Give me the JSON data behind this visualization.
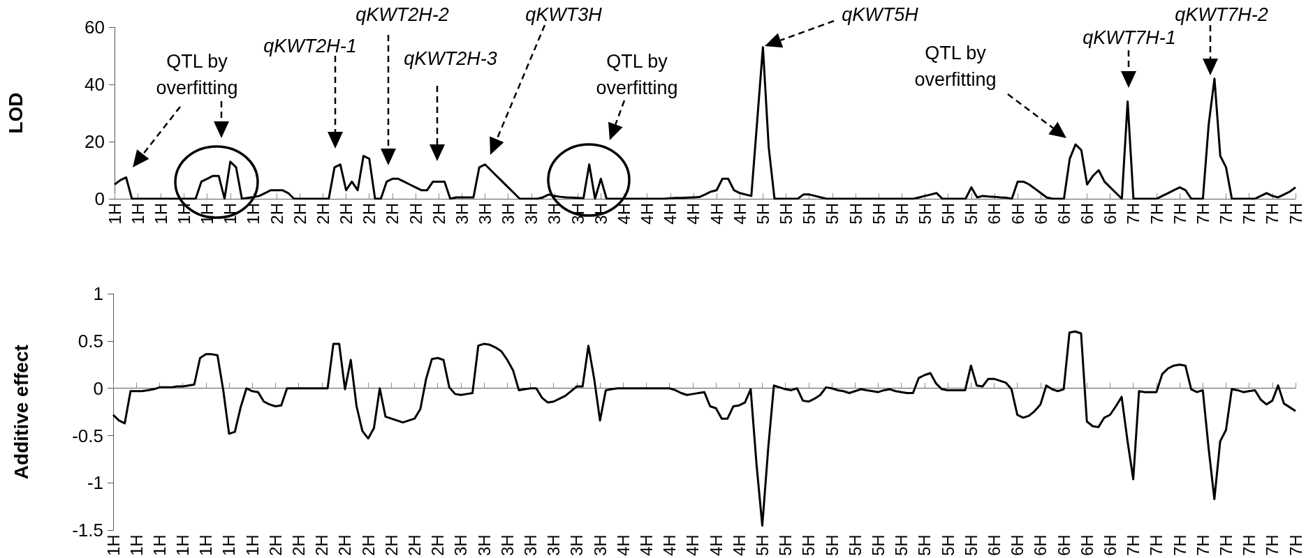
{
  "chart_data": [
    {
      "type": "line",
      "ylabel": "LOD",
      "marker": "none",
      "categories": [
        "1H",
        null,
        null,
        null,
        "1H",
        null,
        null,
        null,
        "1H",
        null,
        null,
        null,
        "1H",
        null,
        null,
        null,
        "1H",
        null,
        null,
        null,
        "1H",
        null,
        null,
        null,
        "1H",
        null,
        null,
        null,
        "2H",
        null,
        null,
        null,
        "2H",
        null,
        null,
        null,
        "2H",
        null,
        null,
        null,
        "2H",
        null,
        null,
        null,
        "2H",
        null,
        null,
        null,
        "2H",
        null,
        null,
        null,
        "2H",
        null,
        null,
        null,
        "2H",
        null,
        null,
        null,
        "3H",
        null,
        null,
        null,
        "3H",
        null,
        null,
        null,
        "3H",
        null,
        null,
        null,
        "3H",
        null,
        null,
        null,
        "3H",
        null,
        null,
        null,
        "3H",
        null,
        null,
        null,
        "3H",
        null,
        null,
        null,
        "4H",
        null,
        null,
        null,
        "4H",
        null,
        null,
        null,
        "4H",
        null,
        null,
        null,
        "4H",
        null,
        null,
        null,
        "4H",
        null,
        null,
        null,
        "4H",
        null,
        null,
        null,
        "5H",
        null,
        null,
        null,
        "5H",
        null,
        null,
        null,
        "5H",
        null,
        null,
        null,
        "5H",
        null,
        null,
        null,
        "5H",
        null,
        null,
        null,
        "5H",
        null,
        null,
        null,
        "5H",
        null,
        null,
        null,
        "5H",
        null,
        null,
        null,
        "5H",
        null,
        null,
        null,
        "5H",
        null,
        null,
        null,
        "6H",
        null,
        null,
        null,
        "6H",
        null,
        null,
        null,
        "6H",
        null,
        null,
        null,
        "6H",
        null,
        null,
        null,
        "6H",
        null,
        null,
        null,
        "6H",
        null,
        null,
        null,
        "7H",
        null,
        null,
        null,
        "7H",
        null,
        null,
        null,
        "7H",
        null,
        null,
        null,
        "7H",
        null,
        null,
        null,
        "7H",
        null,
        null,
        null,
        "7H",
        null,
        null,
        null,
        "7H",
        null,
        null,
        null,
        "7H"
      ],
      "ylim": [
        0,
        60
      ],
      "yticks": [
        0,
        20,
        40,
        60
      ],
      "series": [
        {
          "color": "#000000",
          "values": [
            5,
            6.5,
            7.5,
            0,
            0,
            0,
            0,
            0,
            0,
            0,
            0,
            0,
            0,
            0,
            0,
            6,
            7,
            8,
            8,
            0,
            13,
            11,
            0,
            0.3,
            0.6,
            1,
            2,
            3,
            3,
            3,
            2,
            0,
            0,
            0,
            0,
            0,
            0,
            0,
            11,
            12,
            3,
            6,
            3,
            15,
            14,
            0,
            0,
            6,
            7,
            7,
            6,
            5,
            4,
            3,
            3,
            6,
            6,
            6,
            0,
            0.5,
            0.5,
            0.5,
            0.5,
            11,
            12,
            10,
            8,
            6,
            4,
            2,
            0,
            0,
            0,
            0,
            0.5,
            1.5,
            1,
            0.7,
            0.5,
            0.4,
            0.3,
            0.2,
            12,
            0,
            7,
            0,
            0,
            0,
            0,
            0,
            0,
            0,
            0,
            0,
            0,
            0,
            0.2,
            0.3,
            0.3,
            0.4,
            0.5,
            0.6,
            1.5,
            2.5,
            3,
            7,
            7,
            3,
            2,
            1.5,
            1,
            27,
            53,
            18,
            0,
            0,
            0,
            0,
            0,
            1.5,
            1.5,
            1,
            0.5,
            0,
            0,
            0,
            0,
            0,
            0,
            0,
            0,
            0,
            0,
            0,
            0,
            0,
            0,
            0,
            0,
            0.5,
            1,
            1.5,
            2,
            0,
            0,
            0,
            0,
            0,
            4,
            0.5,
            1,
            0.8,
            0.7,
            0.5,
            0.4,
            0,
            6,
            6,
            5,
            3.5,
            2,
            0.5,
            0,
            0,
            0,
            14,
            19,
            17,
            5,
            8,
            10,
            6,
            4,
            2,
            0,
            34,
            0,
            0,
            0,
            0,
            0,
            1,
            2,
            3,
            4,
            3,
            0,
            0,
            0,
            26,
            42,
            15,
            11,
            0,
            0,
            0,
            0,
            0,
            1,
            2,
            1,
            0.5,
            1.5,
            2.5,
            4
          ]
        }
      ],
      "annotations": [
        "QTL by overfitting",
        "qKWT2H-1",
        "qKWT2H-2",
        "qKWT2H-3",
        "qKWT3H",
        "QTL by overfitting",
        "qKWT5H",
        "QTL by overfitting",
        "qKWT7H-1",
        "qKWT7H-2"
      ]
    },
    {
      "type": "line",
      "ylabel": "Additive effect",
      "marker": "none",
      "categories": [
        "1H",
        null,
        null,
        null,
        "1H",
        null,
        null,
        null,
        "1H",
        null,
        null,
        null,
        "1H",
        null,
        null,
        null,
        "1H",
        null,
        null,
        null,
        "1H",
        null,
        null,
        null,
        "1H",
        null,
        null,
        null,
        "2H",
        null,
        null,
        null,
        "2H",
        null,
        null,
        null,
        "2H",
        null,
        null,
        null,
        "2H",
        null,
        null,
        null,
        "2H",
        null,
        null,
        null,
        "2H",
        null,
        null,
        null,
        "2H",
        null,
        null,
        null,
        "2H",
        null,
        null,
        null,
        "3H",
        null,
        null,
        null,
        "3H",
        null,
        null,
        null,
        "3H",
        null,
        null,
        null,
        "3H",
        null,
        null,
        null,
        "3H",
        null,
        null,
        null,
        "3H",
        null,
        null,
        null,
        "3H",
        null,
        null,
        null,
        "4H",
        null,
        null,
        null,
        "4H",
        null,
        null,
        null,
        "4H",
        null,
        null,
        null,
        "4H",
        null,
        null,
        null,
        "4H",
        null,
        null,
        null,
        "4H",
        null,
        null,
        null,
        "5H",
        null,
        null,
        null,
        "5H",
        null,
        null,
        null,
        "5H",
        null,
        null,
        null,
        "5H",
        null,
        null,
        null,
        "5H",
        null,
        null,
        null,
        "5H",
        null,
        null,
        null,
        "5H",
        null,
        null,
        null,
        "5H",
        null,
        null,
        null,
        "5H",
        null,
        null,
        null,
        "5H",
        null,
        null,
        null,
        "6H",
        null,
        null,
        null,
        "6H",
        null,
        null,
        null,
        "6H",
        null,
        null,
        null,
        "6H",
        null,
        null,
        null,
        "6H",
        null,
        null,
        null,
        "6H",
        null,
        null,
        null,
        "7H",
        null,
        null,
        null,
        "7H",
        null,
        null,
        null,
        "7H",
        null,
        null,
        null,
        "7H",
        null,
        null,
        null,
        "7H",
        null,
        null,
        null,
        "7H",
        null,
        null,
        null,
        "7H",
        null,
        null,
        null,
        "7H"
      ],
      "ylim": [
        -1.5,
        1
      ],
      "yticks": [
        -1.5,
        -1,
        -0.5,
        0,
        0.5,
        1
      ],
      "series": [
        {
          "color": "#000000",
          "values": [
            -0.28,
            -0.34,
            -0.37,
            -0.03,
            -0.03,
            -0.03,
            -0.02,
            -0.01,
            0.01,
            0.01,
            0.01,
            0.02,
            0.02,
            0.03,
            0.04,
            0.32,
            0.36,
            0.36,
            0.35,
            -0.02,
            -0.48,
            -0.46,
            -0.2,
            0,
            -0.03,
            -0.04,
            -0.14,
            -0.17,
            -0.19,
            -0.18,
            0,
            0,
            0,
            0,
            0,
            0,
            0,
            0,
            0.47,
            0.47,
            -0.01,
            0.3,
            -0.19,
            -0.45,
            -0.53,
            -0.42,
            0,
            -0.3,
            -0.32,
            -0.34,
            -0.36,
            -0.34,
            -0.32,
            -0.22,
            0.1,
            0.31,
            0.32,
            0.3,
            0.01,
            -0.06,
            -0.07,
            -0.06,
            -0.05,
            0.45,
            0.47,
            0.46,
            0.43,
            0.39,
            0.3,
            0.19,
            -0.02,
            -0.01,
            0,
            0,
            -0.1,
            -0.15,
            -0.14,
            -0.11,
            -0.08,
            -0.03,
            0.02,
            0.02,
            0.45,
            0.1,
            -0.34,
            -0.02,
            -0.01,
            0,
            0,
            0,
            0,
            0,
            0,
            0,
            0,
            0,
            0,
            -0.02,
            -0.05,
            -0.07,
            -0.06,
            -0.05,
            -0.04,
            -0.19,
            -0.21,
            -0.32,
            -0.32,
            -0.19,
            -0.18,
            -0.15,
            -0.01,
            -0.8,
            -1.45,
            -0.65,
            0.03,
            0.01,
            -0.01,
            -0.02,
            0,
            -0.13,
            -0.14,
            -0.11,
            -0.07,
            0.01,
            0,
            -0.02,
            -0.03,
            -0.05,
            -0.03,
            -0.01,
            -0.02,
            -0.03,
            -0.04,
            -0.02,
            -0.01,
            -0.03,
            -0.04,
            -0.05,
            -0.05,
            0.11,
            0.14,
            0.16,
            0.05,
            -0.01,
            -0.02,
            -0.02,
            -0.02,
            -0.02,
            0.24,
            0.03,
            0.02,
            0.1,
            0.1,
            0.08,
            0.06,
            -0.01,
            -0.28,
            -0.31,
            -0.29,
            -0.24,
            -0.17,
            0.03,
            -0.01,
            -0.03,
            -0.01,
            0.59,
            0.6,
            0.58,
            -0.35,
            -0.4,
            -0.41,
            -0.31,
            -0.28,
            -0.19,
            -0.09,
            -0.55,
            -0.96,
            -0.03,
            -0.04,
            -0.04,
            -0.04,
            0.15,
            0.21,
            0.24,
            0.25,
            0.24,
            -0.01,
            -0.04,
            -0.02,
            -0.63,
            -1.17,
            -0.56,
            -0.44,
            -0.01,
            -0.02,
            -0.04,
            -0.03,
            -0.02,
            -0.12,
            -0.17,
            -0.13,
            0.03,
            -0.16,
            -0.2,
            -0.24
          ]
        }
      ]
    }
  ]
}
